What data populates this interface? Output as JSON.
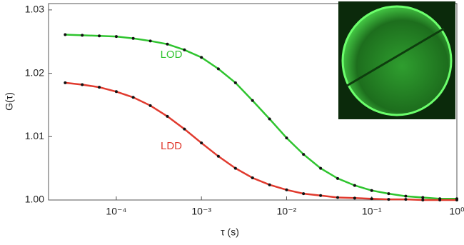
{
  "chart_data": {
    "type": "line",
    "xlabel": "τ (s)",
    "ylabel": "G(τ)",
    "xscale": "log",
    "xlim": [
      1.6e-05,
      1
    ],
    "ylim": [
      1.0,
      1.031
    ],
    "xticks": [
      {
        "value": 0.0001,
        "label": "10⁻⁴"
      },
      {
        "value": 0.001,
        "label": "10⁻³"
      },
      {
        "value": 0.01,
        "label": "10⁻²"
      },
      {
        "value": 0.1,
        "label": "10⁻¹"
      },
      {
        "value": 1,
        "label": "10⁰"
      }
    ],
    "yticks": [
      {
        "value": 1,
        "label": "1.00"
      },
      1.01,
      1.02,
      1.03
    ],
    "x": [
      2.51e-05,
      3.98e-05,
      6.31e-05,
      0.0001,
      0.000158,
      0.000251,
      0.000398,
      0.000631,
      0.001,
      0.00158,
      0.00251,
      0.00398,
      0.00631,
      0.01,
      0.0158,
      0.0251,
      0.0398,
      0.0631,
      0.1,
      0.158,
      0.251,
      0.398,
      0.631,
      1
    ],
    "series": [
      {
        "name": "LOD",
        "color": "#2fc42f",
        "values": [
          1.0261,
          1.026,
          1.0259,
          1.0258,
          1.0255,
          1.0251,
          1.0246,
          1.0237,
          1.0225,
          1.0207,
          1.0185,
          1.0157,
          1.0128,
          1.0098,
          1.0072,
          1.005,
          1.0034,
          1.0023,
          1.0015,
          1.001,
          1.0006,
          1.0004,
          1.0002,
          1.0002
        ]
      },
      {
        "name": "LDD",
        "color": "#e03a2e",
        "values": [
          1.0185,
          1.0182,
          1.0178,
          1.0171,
          1.0162,
          1.0149,
          1.0132,
          1.0112,
          1.009,
          1.0069,
          1.005,
          1.0035,
          1.0024,
          1.0016,
          1.001,
          1.0007,
          1.0004,
          1.0003,
          1.0002,
          1.0001,
          1.0001,
          1.0,
          1.0,
          1.0
        ]
      }
    ]
  }
}
